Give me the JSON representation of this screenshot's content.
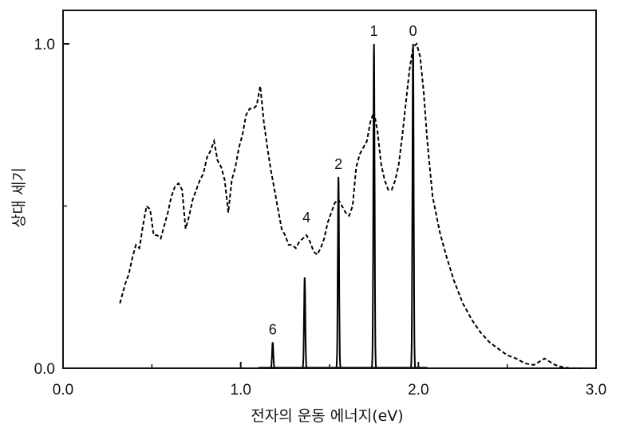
{
  "chart_data": {
    "type": "line",
    "title": "",
    "xlabel": "전자의 운동 에너지(eV)",
    "ylabel": "상대 세기",
    "xlim": [
      0.0,
      3.0
    ],
    "ylim": [
      0.0,
      1.1
    ],
    "x_ticks": [
      {
        "value": 0.0,
        "label": "0.0"
      },
      {
        "value": 1.0,
        "label": "1.0"
      },
      {
        "value": 2.0,
        "label": "2.0"
      },
      {
        "value": 3.0,
        "label": "3.0"
      }
    ],
    "y_ticks": [
      {
        "value": 0.0,
        "label": "0.0"
      },
      {
        "value": 1.0,
        "label": "1.0"
      }
    ],
    "grid": false,
    "legend": "none",
    "series": [
      {
        "style": "solid",
        "color": "#000000",
        "peaks": [
          {
            "x": 1.97,
            "y": 1.0,
            "label": "0"
          },
          {
            "x": 1.75,
            "y": 1.0,
            "label": "1"
          },
          {
            "x": 1.55,
            "y": 0.59,
            "label": "2"
          },
          {
            "x": 1.36,
            "y": 0.28,
            "label": ""
          },
          {
            "x": 1.18,
            "y": 0.08,
            "label": "6"
          }
        ]
      },
      {
        "style": "dashed",
        "color": "#000000",
        "points": [
          [
            0.32,
            0.2
          ],
          [
            0.35,
            0.26
          ],
          [
            0.37,
            0.29
          ],
          [
            0.39,
            0.34
          ],
          [
            0.41,
            0.38
          ],
          [
            0.43,
            0.37
          ],
          [
            0.45,
            0.44
          ],
          [
            0.47,
            0.5
          ],
          [
            0.49,
            0.49
          ],
          [
            0.51,
            0.41
          ],
          [
            0.53,
            0.41
          ],
          [
            0.55,
            0.4
          ],
          [
            0.57,
            0.44
          ],
          [
            0.59,
            0.48
          ],
          [
            0.61,
            0.53
          ],
          [
            0.63,
            0.56
          ],
          [
            0.65,
            0.57
          ],
          [
            0.67,
            0.55
          ],
          [
            0.69,
            0.43
          ],
          [
            0.71,
            0.47
          ],
          [
            0.73,
            0.52
          ],
          [
            0.75,
            0.55
          ],
          [
            0.77,
            0.58
          ],
          [
            0.79,
            0.6
          ],
          [
            0.81,
            0.65
          ],
          [
            0.83,
            0.67
          ],
          [
            0.85,
            0.7
          ],
          [
            0.87,
            0.64
          ],
          [
            0.89,
            0.62
          ],
          [
            0.91,
            0.58
          ],
          [
            0.93,
            0.48
          ],
          [
            0.95,
            0.58
          ],
          [
            0.97,
            0.62
          ],
          [
            0.99,
            0.68
          ],
          [
            1.01,
            0.72
          ],
          [
            1.03,
            0.78
          ],
          [
            1.05,
            0.8
          ],
          [
            1.07,
            0.8
          ],
          [
            1.09,
            0.81
          ],
          [
            1.11,
            0.87
          ],
          [
            1.13,
            0.76
          ],
          [
            1.15,
            0.68
          ],
          [
            1.17,
            0.61
          ],
          [
            1.19,
            0.55
          ],
          [
            1.21,
            0.49
          ],
          [
            1.23,
            0.43
          ],
          [
            1.25,
            0.41
          ],
          [
            1.27,
            0.38
          ],
          [
            1.29,
            0.38
          ],
          [
            1.31,
            0.37
          ],
          [
            1.33,
            0.39
          ],
          [
            1.35,
            0.4
          ],
          [
            1.37,
            0.41
          ],
          [
            1.39,
            0.39
          ],
          [
            1.41,
            0.36
          ],
          [
            1.43,
            0.35
          ],
          [
            1.45,
            0.37
          ],
          [
            1.47,
            0.4
          ],
          [
            1.49,
            0.45
          ],
          [
            1.51,
            0.48
          ],
          [
            1.53,
            0.51
          ],
          [
            1.55,
            0.52
          ],
          [
            1.57,
            0.5
          ],
          [
            1.59,
            0.48
          ],
          [
            1.61,
            0.47
          ],
          [
            1.63,
            0.5
          ],
          [
            1.65,
            0.62
          ],
          [
            1.67,
            0.66
          ],
          [
            1.69,
            0.68
          ],
          [
            1.71,
            0.7
          ],
          [
            1.73,
            0.76
          ],
          [
            1.75,
            0.79
          ],
          [
            1.77,
            0.73
          ],
          [
            1.79,
            0.63
          ],
          [
            1.81,
            0.58
          ],
          [
            1.83,
            0.55
          ],
          [
            1.85,
            0.55
          ],
          [
            1.87,
            0.58
          ],
          [
            1.89,
            0.63
          ],
          [
            1.91,
            0.72
          ],
          [
            1.93,
            0.82
          ],
          [
            1.95,
            0.92
          ],
          [
            1.97,
            0.99
          ],
          [
            1.99,
            1.0
          ],
          [
            2.01,
            0.96
          ],
          [
            2.03,
            0.85
          ],
          [
            2.05,
            0.7
          ],
          [
            2.08,
            0.53
          ],
          [
            2.12,
            0.42
          ],
          [
            2.16,
            0.34
          ],
          [
            2.2,
            0.27
          ],
          [
            2.25,
            0.2
          ],
          [
            2.3,
            0.15
          ],
          [
            2.35,
            0.11
          ],
          [
            2.4,
            0.08
          ],
          [
            2.45,
            0.06
          ],
          [
            2.5,
            0.04
          ],
          [
            2.55,
            0.03
          ],
          [
            2.6,
            0.015
          ],
          [
            2.65,
            0.01
          ],
          [
            2.68,
            0.02
          ],
          [
            2.71,
            0.03
          ],
          [
            2.74,
            0.02
          ],
          [
            2.77,
            0.01
          ],
          [
            2.8,
            0.005
          ],
          [
            2.85,
            0.0
          ],
          [
            2.9,
            0.0
          ],
          [
            2.93,
            0.0
          ]
        ],
        "annotations": [
          {
            "x": 1.37,
            "y": 0.45,
            "label": "4"
          }
        ]
      }
    ]
  }
}
